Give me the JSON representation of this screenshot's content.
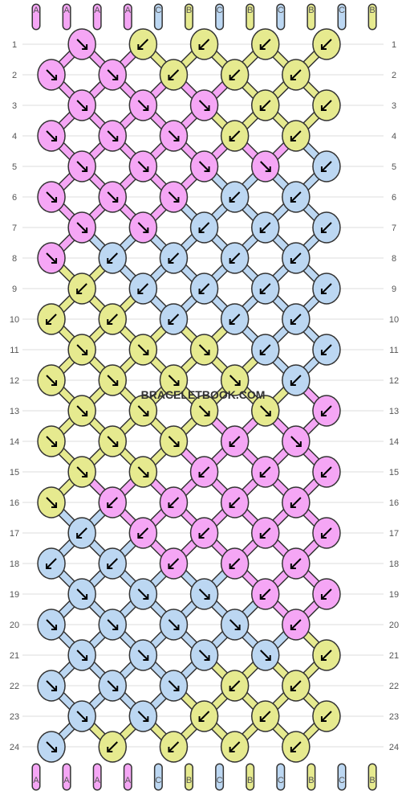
{
  "watermark": "BRACELETBOOK.COM",
  "colors": {
    "A": "#f5a6f5",
    "B": "#e6ea8f",
    "C": "#bcd7f2",
    "outline": "#333333",
    "row_line": "#dddddd"
  },
  "strings_top": [
    "A",
    "A",
    "A",
    "A",
    "C",
    "B",
    "C",
    "B",
    "C",
    "B",
    "C",
    "B"
  ],
  "strings_bottom": [
    "A",
    "A",
    "A",
    "A",
    "C",
    "B",
    "C",
    "B",
    "C",
    "B",
    "C",
    "B"
  ],
  "row_numbers": [
    "1",
    "2",
    "3",
    "4",
    "5",
    "6",
    "7",
    "8",
    "9",
    "10",
    "11",
    "12",
    "13",
    "14",
    "15",
    "16",
    "17",
    "18",
    "19",
    "20",
    "21",
    "22",
    "23",
    "24"
  ],
  "knot_rows": [
    {
      "start": 1,
      "knots": [
        {
          "c": "A",
          "d": "down-right-icon"
        },
        {
          "c": "B",
          "d": "down-left-icon"
        },
        {
          "c": "B",
          "d": "down-left-icon"
        },
        {
          "c": "B",
          "d": "down-left-icon"
        },
        {
          "c": "B",
          "d": "down-left-icon"
        }
      ]
    },
    {
      "start": 0,
      "knots": [
        {
          "c": "A",
          "d": "down-right-icon"
        },
        {
          "c": "A",
          "d": "down-right-icon"
        },
        {
          "c": "B",
          "d": "down-left-icon"
        },
        {
          "c": "B",
          "d": "down-left-icon"
        },
        {
          "c": "B",
          "d": "down-left-icon"
        }
      ]
    },
    {
      "start": 1,
      "knots": [
        {
          "c": "A",
          "d": "down-right-icon"
        },
        {
          "c": "A",
          "d": "down-right-icon"
        },
        {
          "c": "A",
          "d": "down-right-icon"
        },
        {
          "c": "B",
          "d": "down-left-icon"
        },
        {
          "c": "B",
          "d": "down-left-icon"
        }
      ]
    },
    {
      "start": 0,
      "knots": [
        {
          "c": "A",
          "d": "down-right-icon"
        },
        {
          "c": "A",
          "d": "down-right-icon"
        },
        {
          "c": "A",
          "d": "down-right-icon"
        },
        {
          "c": "B",
          "d": "down-left-icon"
        },
        {
          "c": "B",
          "d": "down-left-icon"
        }
      ]
    },
    {
      "start": 1,
      "knots": [
        {
          "c": "A",
          "d": "down-right-icon"
        },
        {
          "c": "A",
          "d": "down-right-icon"
        },
        {
          "c": "A",
          "d": "down-right-icon"
        },
        {
          "c": "A",
          "d": "down-right-icon"
        },
        {
          "c": "C",
          "d": "down-left-icon"
        }
      ]
    },
    {
      "start": 0,
      "knots": [
        {
          "c": "A",
          "d": "down-right-icon"
        },
        {
          "c": "A",
          "d": "down-right-icon"
        },
        {
          "c": "A",
          "d": "down-right-icon"
        },
        {
          "c": "C",
          "d": "down-left-icon"
        },
        {
          "c": "C",
          "d": "down-left-icon"
        }
      ]
    },
    {
      "start": 1,
      "knots": [
        {
          "c": "A",
          "d": "down-right-icon"
        },
        {
          "c": "A",
          "d": "down-right-icon"
        },
        {
          "c": "C",
          "d": "down-left-icon"
        },
        {
          "c": "C",
          "d": "down-left-icon"
        },
        {
          "c": "C",
          "d": "down-left-icon"
        }
      ]
    },
    {
      "start": 0,
      "knots": [
        {
          "c": "A",
          "d": "down-right-icon"
        },
        {
          "c": "C",
          "d": "down-left-icon"
        },
        {
          "c": "C",
          "d": "down-left-icon"
        },
        {
          "c": "C",
          "d": "down-left-icon"
        },
        {
          "c": "C",
          "d": "down-left-icon"
        }
      ]
    },
    {
      "start": 1,
      "knots": [
        {
          "c": "B",
          "d": "down-left-icon"
        },
        {
          "c": "C",
          "d": "down-left-icon"
        },
        {
          "c": "C",
          "d": "down-left-icon"
        },
        {
          "c": "C",
          "d": "down-left-icon"
        },
        {
          "c": "C",
          "d": "down-left-icon"
        }
      ]
    },
    {
      "start": 0,
      "knots": [
        {
          "c": "B",
          "d": "down-left-icon"
        },
        {
          "c": "B",
          "d": "down-left-icon"
        },
        {
          "c": "C",
          "d": "down-left-icon"
        },
        {
          "c": "C",
          "d": "down-left-icon"
        },
        {
          "c": "C",
          "d": "down-left-icon"
        }
      ]
    },
    {
      "start": 1,
      "knots": [
        {
          "c": "B",
          "d": "down-right-icon"
        },
        {
          "c": "B",
          "d": "down-right-icon"
        },
        {
          "c": "B",
          "d": "down-right-icon"
        },
        {
          "c": "C",
          "d": "down-left-icon"
        },
        {
          "c": "C",
          "d": "down-left-icon"
        }
      ]
    },
    {
      "start": 0,
      "knots": [
        {
          "c": "B",
          "d": "down-right-icon"
        },
        {
          "c": "B",
          "d": "down-right-icon"
        },
        {
          "c": "B",
          "d": "down-right-icon"
        },
        {
          "c": "B",
          "d": "down-right-icon"
        },
        {
          "c": "C",
          "d": "down-left-icon"
        }
      ]
    },
    {
      "start": 1,
      "knots": [
        {
          "c": "B",
          "d": "down-right-icon"
        },
        {
          "c": "B",
          "d": "down-right-icon"
        },
        {
          "c": "B",
          "d": "down-right-icon"
        },
        {
          "c": "B",
          "d": "down-right-icon"
        },
        {
          "c": "A",
          "d": "down-left-icon"
        }
      ]
    },
    {
      "start": 0,
      "knots": [
        {
          "c": "B",
          "d": "down-right-icon"
        },
        {
          "c": "B",
          "d": "down-right-icon"
        },
        {
          "c": "B",
          "d": "down-right-icon"
        },
        {
          "c": "A",
          "d": "down-left-icon"
        },
        {
          "c": "A",
          "d": "down-right-icon"
        }
      ]
    },
    {
      "start": 1,
      "knots": [
        {
          "c": "B",
          "d": "down-right-icon"
        },
        {
          "c": "B",
          "d": "down-right-icon"
        },
        {
          "c": "A",
          "d": "down-left-icon"
        },
        {
          "c": "A",
          "d": "down-left-icon"
        },
        {
          "c": "A",
          "d": "down-left-icon"
        }
      ]
    },
    {
      "start": 0,
      "knots": [
        {
          "c": "B",
          "d": "down-right-icon"
        },
        {
          "c": "A",
          "d": "down-left-icon"
        },
        {
          "c": "A",
          "d": "down-left-icon"
        },
        {
          "c": "A",
          "d": "down-left-icon"
        },
        {
          "c": "A",
          "d": "down-left-icon"
        }
      ]
    },
    {
      "start": 1,
      "knots": [
        {
          "c": "C",
          "d": "down-left-icon"
        },
        {
          "c": "A",
          "d": "down-left-icon"
        },
        {
          "c": "A",
          "d": "down-left-icon"
        },
        {
          "c": "A",
          "d": "down-left-icon"
        },
        {
          "c": "A",
          "d": "down-left-icon"
        }
      ]
    },
    {
      "start": 0,
      "knots": [
        {
          "c": "C",
          "d": "down-left-icon"
        },
        {
          "c": "C",
          "d": "down-left-icon"
        },
        {
          "c": "A",
          "d": "down-left-icon"
        },
        {
          "c": "A",
          "d": "down-left-icon"
        },
        {
          "c": "A",
          "d": "down-left-icon"
        }
      ]
    },
    {
      "start": 1,
      "knots": [
        {
          "c": "C",
          "d": "down-right-icon"
        },
        {
          "c": "C",
          "d": "down-right-icon"
        },
        {
          "c": "C",
          "d": "down-right-icon"
        },
        {
          "c": "A",
          "d": "down-left-icon"
        },
        {
          "c": "A",
          "d": "down-left-icon"
        }
      ]
    },
    {
      "start": 0,
      "knots": [
        {
          "c": "C",
          "d": "down-right-icon"
        },
        {
          "c": "C",
          "d": "down-right-icon"
        },
        {
          "c": "C",
          "d": "down-right-icon"
        },
        {
          "c": "C",
          "d": "down-right-icon"
        },
        {
          "c": "A",
          "d": "down-left-icon"
        }
      ]
    },
    {
      "start": 1,
      "knots": [
        {
          "c": "C",
          "d": "down-right-icon"
        },
        {
          "c": "C",
          "d": "down-right-icon"
        },
        {
          "c": "C",
          "d": "down-right-icon"
        },
        {
          "c": "C",
          "d": "down-right-icon"
        },
        {
          "c": "B",
          "d": "down-left-icon"
        }
      ]
    },
    {
      "start": 0,
      "knots": [
        {
          "c": "C",
          "d": "down-right-icon"
        },
        {
          "c": "C",
          "d": "down-right-icon"
        },
        {
          "c": "C",
          "d": "down-right-icon"
        },
        {
          "c": "B",
          "d": "down-left-icon"
        },
        {
          "c": "B",
          "d": "down-left-icon"
        }
      ]
    },
    {
      "start": 1,
      "knots": [
        {
          "c": "C",
          "d": "down-right-icon"
        },
        {
          "c": "C",
          "d": "down-right-icon"
        },
        {
          "c": "B",
          "d": "down-left-icon"
        },
        {
          "c": "B",
          "d": "down-left-icon"
        },
        {
          "c": "B",
          "d": "down-left-icon"
        }
      ]
    },
    {
      "start": 0,
      "knots": [
        {
          "c": "C",
          "d": "down-right-icon"
        },
        {
          "c": "B",
          "d": "down-left-icon"
        },
        {
          "c": "B",
          "d": "down-left-icon"
        },
        {
          "c": "B",
          "d": "down-left-icon"
        },
        {
          "c": "B",
          "d": "down-left-icon"
        }
      ]
    }
  ]
}
